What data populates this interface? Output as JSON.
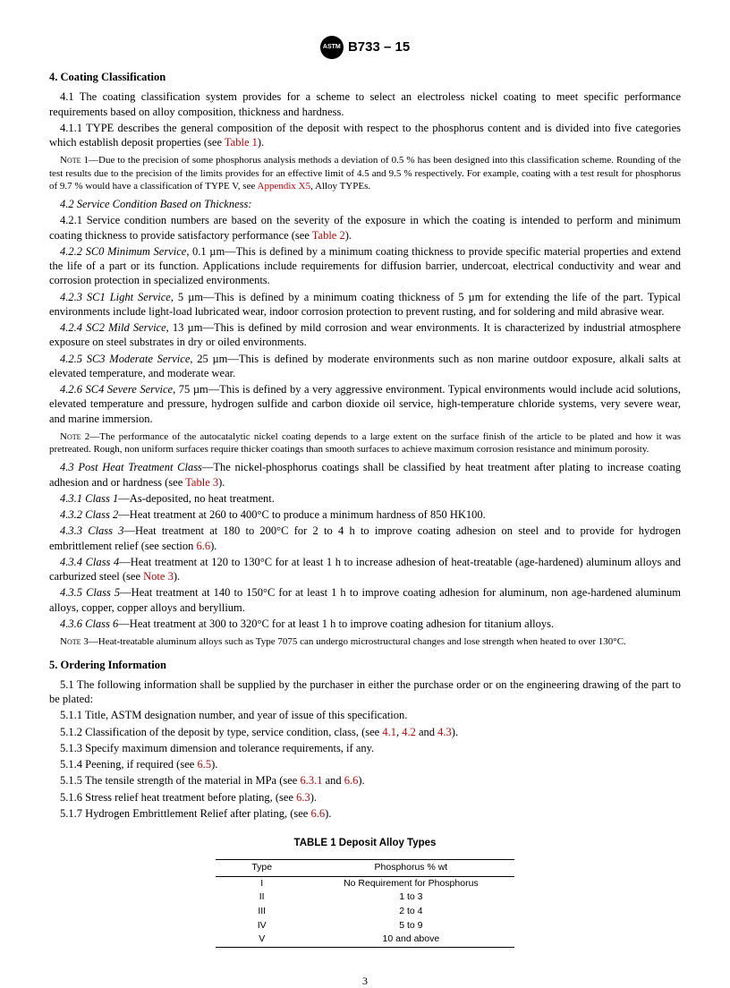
{
  "header": {
    "logo_text": "ASTM",
    "designation": "B733 – 15"
  },
  "s4": {
    "title": "4.  Coating Classification",
    "p41": "4.1  The coating classification system provides for a scheme to select an electroless nickel coating to meet specific performance requirements based on alloy composition, thickness and hardness.",
    "p411a": "4.1.1 TYPE describes the general composition of the deposit with respect to the phosphorus content and is divided into five categories which establish deposit properties (see ",
    "ref_t1": "Table 1",
    "p411b": ").",
    "note1_label": "Note 1",
    "note1a": "—Due to the precision of some phosphorus analysis methods a deviation of 0.5 % has been designed into this classification scheme. Rounding of the test results due to the precision of the limits provides for an effective limit of 4.5 and 9.5 % respectively. For example, coating with a test result for phosphorus of 9.7 % would have a classification of TYPE V, see ",
    "ref_x5": "Appendix X5",
    "note1b": ", Alloy TYPEs.",
    "p42": "4.2  Service Condition Based on Thickness:",
    "p421a": "4.2.1 Service condition numbers are based on the severity of the exposure in which the coating is intended to perform and minimum coating thickness to provide satisfactory performance (see ",
    "ref_t2": "Table 2",
    "p421b": ").",
    "p422l": "4.2.2 SC0 Minimum Service",
    "p422": ", 0.1 µm—This is defined by a minimum coating thickness to provide specific material properties and extend the life of a part or its function. Applications include requirements for diffusion barrier, undercoat, electrical conductivity and wear and corrosion protection in specialized environments.",
    "p423l": "4.2.3 SC1 Light Service",
    "p423": ", 5 µm—This is defined by a minimum coating thickness of 5 µm for extending the life of the part. Typical environments include light-load lubricated wear, indoor corrosion protection to prevent rusting, and for soldering and mild abrasive wear.",
    "p424l": "4.2.4 SC2 Mild Service",
    "p424": ", 13 µm—This is defined by mild corrosion and wear environments. It is characterized by industrial atmosphere exposure on steel substrates in dry or oiled environments.",
    "p425l": "4.2.5 SC3 Moderate Service",
    "p425": ", 25 µm—This is defined by moderate environments such as non marine outdoor exposure, alkali salts at elevated temperature, and moderate wear.",
    "p426l": "4.2.6 SC4 Severe Service",
    "p426": ", 75 µm—This is defined by a very aggressive environment. Typical environments would include acid solutions, elevated temperature and pressure, hydrogen sulfide and carbon dioxide oil service, high-temperature chloride systems, very severe wear, and marine immersion.",
    "note2_label": "Note 2",
    "note2": "—The performance of the autocatalytic nickel coating depends to a large extent on the surface finish of the article to be plated and how it was pretreated. Rough, non uniform surfaces require thicker coatings than smooth surfaces to achieve maximum corrosion resistance and minimum porosity.",
    "p43l": "4.3  Post Heat Treatment Class",
    "p43a": "—The nickel-phosphorus coatings shall be classified by heat treatment after plating to increase coating adhesion and or hardness (see ",
    "ref_t3": "Table 3",
    "p43b": ").",
    "p431l": "4.3.1 Class 1",
    "p431": "—As-deposited, no heat treatment.",
    "p432l": "4.3.2 Class 2",
    "p432": "—Heat treatment at 260 to 400°C to produce a minimum hardness of 850 HK100.",
    "p433l": "4.3.3 Class 3",
    "p433a": "—Heat treatment at 180 to 200°C for 2 to 4 h to improve coating adhesion on steel and to provide for hydrogen embrittlement relief (see section ",
    "ref66a": "6.6",
    "p433b": ").",
    "p434l": "4.3.4 Class 4",
    "p434a": "—Heat treatment at 120 to 130°C for at least 1 h to increase adhesion of heat-treatable (age-hardened) aluminum alloys and carburized steel (see ",
    "refn3": "Note 3",
    "p434b": ").",
    "p435l": "4.3.5 Class 5",
    "p435": "—Heat treatment at 140 to 150°C for at least 1 h to improve coating adhesion for aluminum, non age-hardened aluminum alloys, copper, copper alloys and beryllium.",
    "p436l": "4.3.6 Class 6",
    "p436": "—Heat treatment at 300 to 320°C for at least 1 h to improve coating adhesion for titanium alloys.",
    "note3_label": "Note 3",
    "note3": "—Heat-treatable aluminum alloys such as Type 7075 can undergo microstructural changes and lose strength when heated to over 130°C."
  },
  "s5": {
    "title": "5.  Ordering Information",
    "p51": "5.1  The following information shall be supplied by the purchaser in either the purchase order or on the engineering drawing of the part to be plated:",
    "p511": "5.1.1 Title, ASTM designation number, and year of issue of this specification.",
    "p512a": "5.1.2 Classification of the deposit by type, service condition, class, (see ",
    "r41": "4.1",
    "c1": ", ",
    "r42": "4.2",
    "and": " and ",
    "r43": "4.3",
    "p512b": ").",
    "p513": "5.1.3 Specify maximum dimension and tolerance requirements, if any.",
    "p514a": "5.1.4 Peening, if required (see ",
    "r65": "6.5",
    "p514b": ").",
    "p515a": "5.1.5 The tensile strength of the material in MPa (see ",
    "r631": "6.3.1",
    "and2": " and ",
    "r66": "6.6",
    "p515b": ").",
    "p516a": "5.1.6 Stress relief heat treatment before plating, (see ",
    "r63": "6.3",
    "p516b": ").",
    "p517a": "5.1.7 Hydrogen Embrittlement Relief after plating, (see ",
    "r66b": "6.6",
    "p517b": ")."
  },
  "table1": {
    "caption": "TABLE 1 Deposit Alloy Types",
    "h1": "Type",
    "h2": "Phosphorus % wt",
    "rows": [
      {
        "c1": "I",
        "c2": "No Requirement for Phosphorus"
      },
      {
        "c1": "II",
        "c2": "1 to 3"
      },
      {
        "c1": "III",
        "c2": "2 to 4"
      },
      {
        "c1": "IV",
        "c2": "5 to 9"
      },
      {
        "c1": "V",
        "c2": "10 and above"
      }
    ]
  },
  "pagenum": "3"
}
